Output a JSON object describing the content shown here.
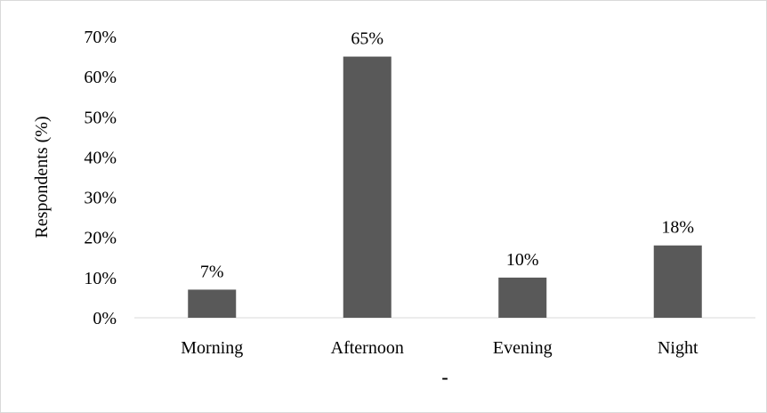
{
  "chart_data": {
    "type": "bar",
    "categories": [
      "Morning",
      "Afternoon",
      "Evening",
      "Night"
    ],
    "values": [
      7,
      65,
      10,
      18
    ],
    "data_labels": [
      "7%",
      "65%",
      "10%",
      "18%"
    ],
    "y_ticks": [
      "0%",
      "10%",
      "20%",
      "30%",
      "40%",
      "50%",
      "60%",
      "70%"
    ],
    "ylim": [
      0,
      70
    ],
    "ylabel": "Respondents (%)",
    "xlabel": "-",
    "grid": false,
    "legend": "none",
    "bar_color": "#595959"
  }
}
